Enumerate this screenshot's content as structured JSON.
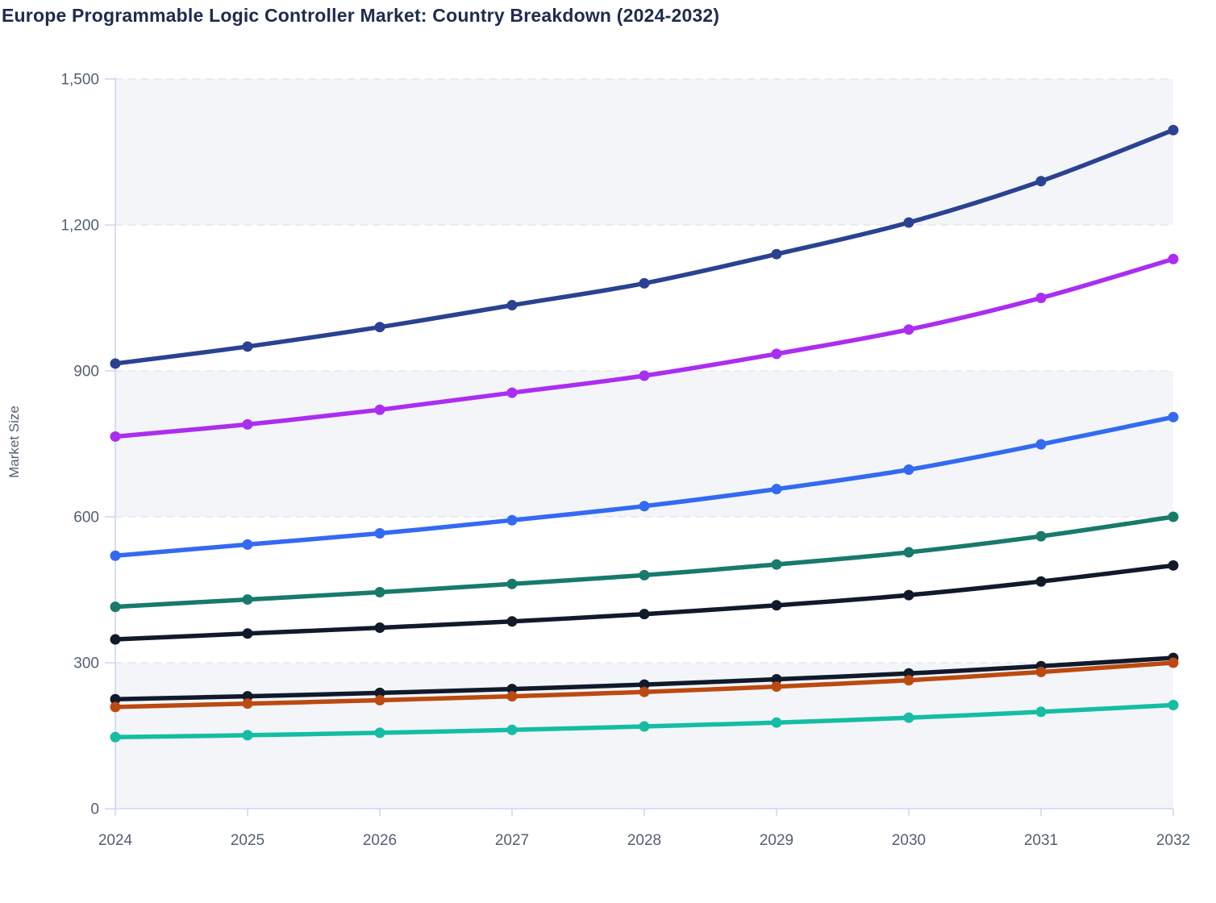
{
  "page": {
    "title": "Europe Programmable Logic Controller Market: Country Breakdown (2024-2032)"
  },
  "chart_data": {
    "type": "line",
    "title": "Europe Programmable Logic Controller Market: Country Breakdown (2024-2032)",
    "xlabel": "",
    "ylabel": "Market Size",
    "x": [
      2024,
      2025,
      2026,
      2027,
      2028,
      2029,
      2030,
      2031,
      2032
    ],
    "x_labels": [
      "2024",
      "2025",
      "2026",
      "2027",
      "2028",
      "2029",
      "2030",
      "2031",
      "2032"
    ],
    "ylim": [
      0,
      1500
    ],
    "yticks": [
      0,
      300,
      600,
      900,
      1200,
      1500
    ],
    "ytick_labels": [
      "0",
      "300",
      "600",
      "900",
      "1,200",
      "1,500"
    ],
    "grid": "horizontal-dashed",
    "legend_position": "none",
    "background_bands": [
      [
        0,
        300
      ],
      [
        600,
        900
      ],
      [
        1200,
        1500
      ]
    ],
    "marker": "dot",
    "curve": "smooth",
    "series": [
      {
        "name": "navy",
        "color": "#2a4291",
        "values": [
          915,
          950,
          990,
          1035,
          1080,
          1140,
          1205,
          1290,
          1395
        ]
      },
      {
        "name": "violet",
        "color": "#ab2ef0",
        "values": [
          765,
          790,
          820,
          855,
          890,
          935,
          985,
          1050,
          1130
        ]
      },
      {
        "name": "royal-blue",
        "color": "#336af1",
        "values": [
          520,
          543,
          566,
          593,
          622,
          657,
          697,
          749,
          805
        ]
      },
      {
        "name": "dark-teal",
        "color": "#187a6b",
        "values": [
          415,
          430,
          445,
          462,
          480,
          502,
          527,
          560,
          600
        ]
      },
      {
        "name": "ink-upper",
        "color": "#111a2b",
        "values": [
          348,
          360,
          372,
          385,
          400,
          418,
          439,
          467,
          500
        ]
      },
      {
        "name": "ink-lower",
        "color": "#111a2b",
        "values": [
          225,
          231,
          238,
          246,
          255,
          266,
          278,
          293,
          310
        ]
      },
      {
        "name": "burnt-orange",
        "color": "#bc4a10",
        "values": [
          209,
          216,
          223,
          231,
          240,
          251,
          264,
          281,
          300
        ]
      },
      {
        "name": "turquoise",
        "color": "#14bda3",
        "values": [
          147,
          151,
          156,
          162,
          169,
          177,
          187,
          199,
          213
        ]
      }
    ],
    "style_colors": {
      "title_text": "#202c4e",
      "axis_text": "#545f73",
      "axis_line": "#ccd5f0",
      "gridline": "#e3e6eb",
      "band_fill": "#f3f5f9",
      "background": "#ffffff"
    }
  }
}
